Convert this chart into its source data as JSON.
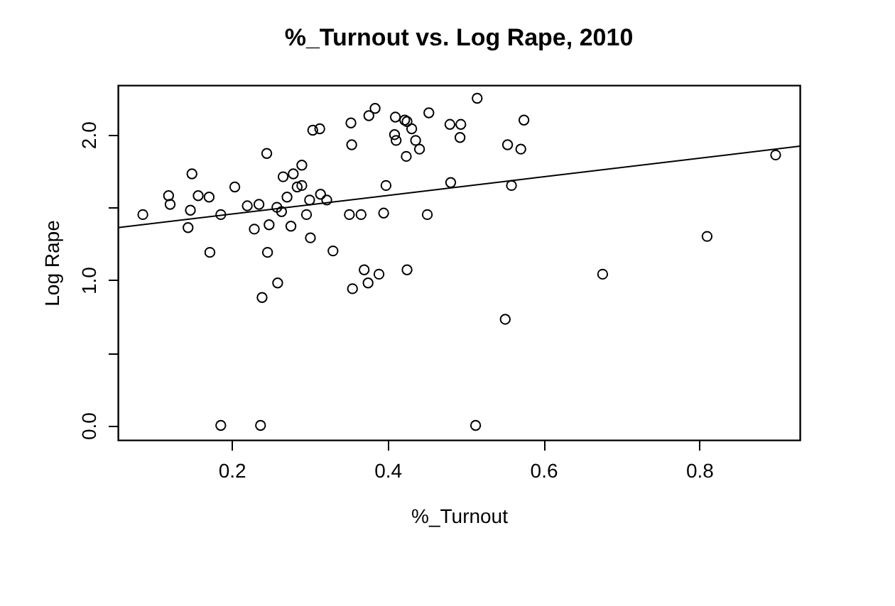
{
  "chart_data": {
    "type": "scatter",
    "title": "%_Turnout vs. Log Rape, 2010",
    "xlabel": "%_Turnout",
    "ylabel": "Log Rape",
    "xlim": [
      0.054,
      0.929
    ],
    "ylim": [
      -0.1,
      2.34
    ],
    "xticks": [
      0.2,
      0.4,
      0.6,
      0.8
    ],
    "yticks": [
      {
        "value": 0.0,
        "label": "0.0"
      },
      {
        "value": 0.5,
        "label": null
      },
      {
        "value": 1.0,
        "label": "1.0"
      },
      {
        "value": 1.5,
        "label": null
      },
      {
        "value": 2.0,
        "label": "2.0"
      }
    ],
    "grid": false,
    "series": [
      {
        "marker": "circle",
        "color": "#000000",
        "x": [
          0.086,
          0.119,
          0.121,
          0.149,
          0.147,
          0.144,
          0.157,
          0.171,
          0.172,
          0.186,
          0.204,
          0.22,
          0.235,
          0.229,
          0.248,
          0.245,
          0.246,
          0.239,
          0.259,
          0.258,
          0.264,
          0.266,
          0.271,
          0.276,
          0.279,
          0.284,
          0.29,
          0.29,
          0.296,
          0.3,
          0.301,
          0.304,
          0.313,
          0.314,
          0.322,
          0.33,
          0.186,
          0.237,
          0.353,
          0.354,
          0.351,
          0.366,
          0.355,
          0.37,
          0.375,
          0.389,
          0.376,
          0.384,
          0.398,
          0.395,
          0.41,
          0.409,
          0.411,
          0.422,
          0.425,
          0.431,
          0.424,
          0.436,
          0.441,
          0.425,
          0.453,
          0.451,
          0.48,
          0.494,
          0.493,
          0.481,
          0.515,
          0.513,
          0.554,
          0.571,
          0.575,
          0.559,
          0.551,
          0.676,
          0.81,
          0.898
        ],
        "values": [
          1.45,
          1.58,
          1.52,
          1.73,
          1.48,
          1.36,
          1.58,
          1.57,
          1.19,
          1.45,
          1.64,
          1.51,
          1.52,
          1.35,
          1.38,
          1.87,
          1.19,
          0.88,
          0.98,
          1.5,
          1.47,
          1.71,
          1.57,
          1.37,
          1.73,
          1.64,
          1.79,
          1.65,
          1.45,
          1.55,
          1.29,
          2.03,
          2.04,
          1.59,
          1.55,
          1.2,
          0.0,
          0.0,
          2.08,
          1.93,
          1.45,
          1.45,
          0.94,
          1.07,
          0.98,
          1.04,
          2.13,
          2.18,
          1.65,
          1.46,
          2.12,
          2.0,
          1.96,
          2.1,
          2.09,
          2.04,
          1.85,
          1.96,
          1.9,
          1.07,
          2.15,
          1.45,
          2.07,
          2.07,
          1.98,
          1.67,
          2.25,
          0.0,
          1.93,
          1.9,
          2.1,
          1.65,
          0.73,
          1.04,
          1.3,
          1.86
        ]
      },
      {
        "type": "line",
        "color": "#000000",
        "line_style": "solid",
        "x": [
          0.054,
          0.929
        ],
        "values": [
          1.36,
          1.92
        ]
      }
    ]
  }
}
